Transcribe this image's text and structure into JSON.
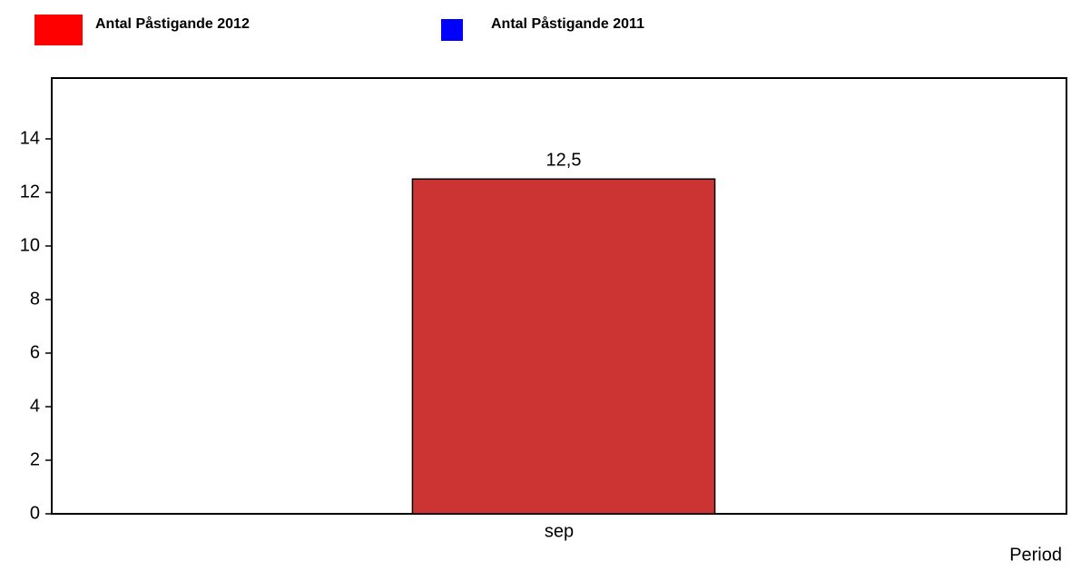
{
  "chart_data": {
    "type": "bar",
    "categories": [
      "sep"
    ],
    "x_label": "Period",
    "series": [
      {
        "name": "Antal Påstigande 2012",
        "color": "#cc3333",
        "legend_color": "#ff0000",
        "values": [
          12.5
        ],
        "value_labels": [
          "12,5"
        ]
      },
      {
        "name": "Antal Påstigande 2011",
        "color": "#0000ff",
        "legend_color": "#0000ff",
        "values": [
          null
        ]
      }
    ],
    "ylim": [
      0,
      16.27
    ],
    "yticks": [
      0,
      2,
      4,
      6,
      8,
      10,
      12,
      14
    ],
    "grid": false
  }
}
